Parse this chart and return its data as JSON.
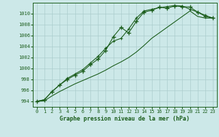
{
  "xlabel": "Graphe pression niveau de la mer (hPa)",
  "background_color": "#cce8e8",
  "grid_color": "#aacccc",
  "line_color": "#1a5c1a",
  "xlim": [
    -0.5,
    23.5
  ],
  "ylim": [
    993.0,
    1012.0
  ],
  "yticks": [
    994,
    996,
    998,
    1000,
    1002,
    1004,
    1006,
    1008,
    1010
  ],
  "xticks": [
    0,
    1,
    2,
    3,
    4,
    5,
    6,
    7,
    8,
    9,
    10,
    11,
    12,
    13,
    14,
    15,
    16,
    17,
    18,
    19,
    20,
    21,
    22,
    23
  ],
  "line1_x": [
    0,
    1,
    2,
    3,
    4,
    5,
    6,
    7,
    8,
    9,
    10,
    11,
    12,
    13,
    14,
    15,
    16,
    17,
    18,
    19,
    20,
    21,
    22,
    23
  ],
  "line1_y": [
    994.0,
    994.3,
    995.8,
    997.0,
    998.0,
    998.8,
    999.5,
    1000.7,
    1001.7,
    1003.3,
    1005.8,
    1007.5,
    1006.5,
    1008.6,
    1010.3,
    1010.6,
    1011.2,
    1011.0,
    1011.4,
    1011.3,
    1011.2,
    1010.3,
    1009.5,
    1009.2
  ],
  "line2_x": [
    0,
    1,
    2,
    3,
    4,
    5,
    6,
    7,
    8,
    9,
    10,
    11,
    12,
    13,
    14,
    15,
    16,
    17,
    18,
    19,
    20,
    21,
    22,
    23
  ],
  "line2_y": [
    994.0,
    994.3,
    995.8,
    997.0,
    998.2,
    999.0,
    999.8,
    1001.0,
    1002.2,
    1003.7,
    1005.0,
    1005.5,
    1007.2,
    1009.2,
    1010.5,
    1010.8,
    1011.1,
    1011.3,
    1011.5,
    1011.4,
    1010.8,
    1010.3,
    1009.7,
    1009.2
  ],
  "line3_x": [
    0,
    1,
    2,
    3,
    4,
    5,
    6,
    7,
    8,
    9,
    10,
    11,
    12,
    13,
    14,
    15,
    16,
    17,
    18,
    19,
    20,
    21,
    22,
    23
  ],
  "line3_y": [
    994.0,
    994.1,
    995.0,
    995.8,
    996.5,
    997.2,
    997.8,
    998.4,
    999.0,
    999.7,
    1000.5,
    1001.2,
    1002.0,
    1003.0,
    1004.2,
    1005.5,
    1006.5,
    1007.5,
    1008.5,
    1009.5,
    1010.5,
    1009.5,
    1009.2,
    1009.2
  ]
}
